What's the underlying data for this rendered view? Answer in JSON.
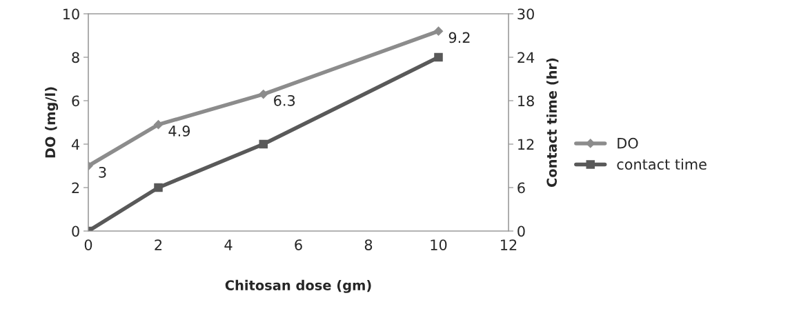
{
  "chart_data": {
    "type": "line",
    "xlabel": "Chitosan dose (gm)",
    "ylabel": "DO (mg/l)",
    "y2label": "Contact time (hr)",
    "x": [
      0,
      2,
      5,
      10
    ],
    "series": [
      {
        "name": "DO",
        "color": "#8c8c8c",
        "marker": "diamond",
        "values": [
          3,
          4.9,
          6.3,
          9.2
        ],
        "value_labels": [
          "3",
          "4.9",
          "6.3",
          "9.2"
        ]
      },
      {
        "name": "contact time",
        "color": "#595959",
        "marker": "square",
        "axis": "y2",
        "values": [
          0,
          6,
          12,
          24
        ]
      }
    ],
    "xlim": [
      0,
      12
    ],
    "xticks": [
      0,
      2,
      4,
      6,
      8,
      10,
      12
    ],
    "ylim": [
      0,
      10
    ],
    "yticks": [
      0,
      2,
      4,
      6,
      8,
      10
    ],
    "y2lim": [
      0,
      30
    ],
    "y2ticks": [
      0,
      6,
      12,
      18,
      24,
      30
    ],
    "grid": false,
    "legend": "right",
    "line_style": "solid"
  }
}
